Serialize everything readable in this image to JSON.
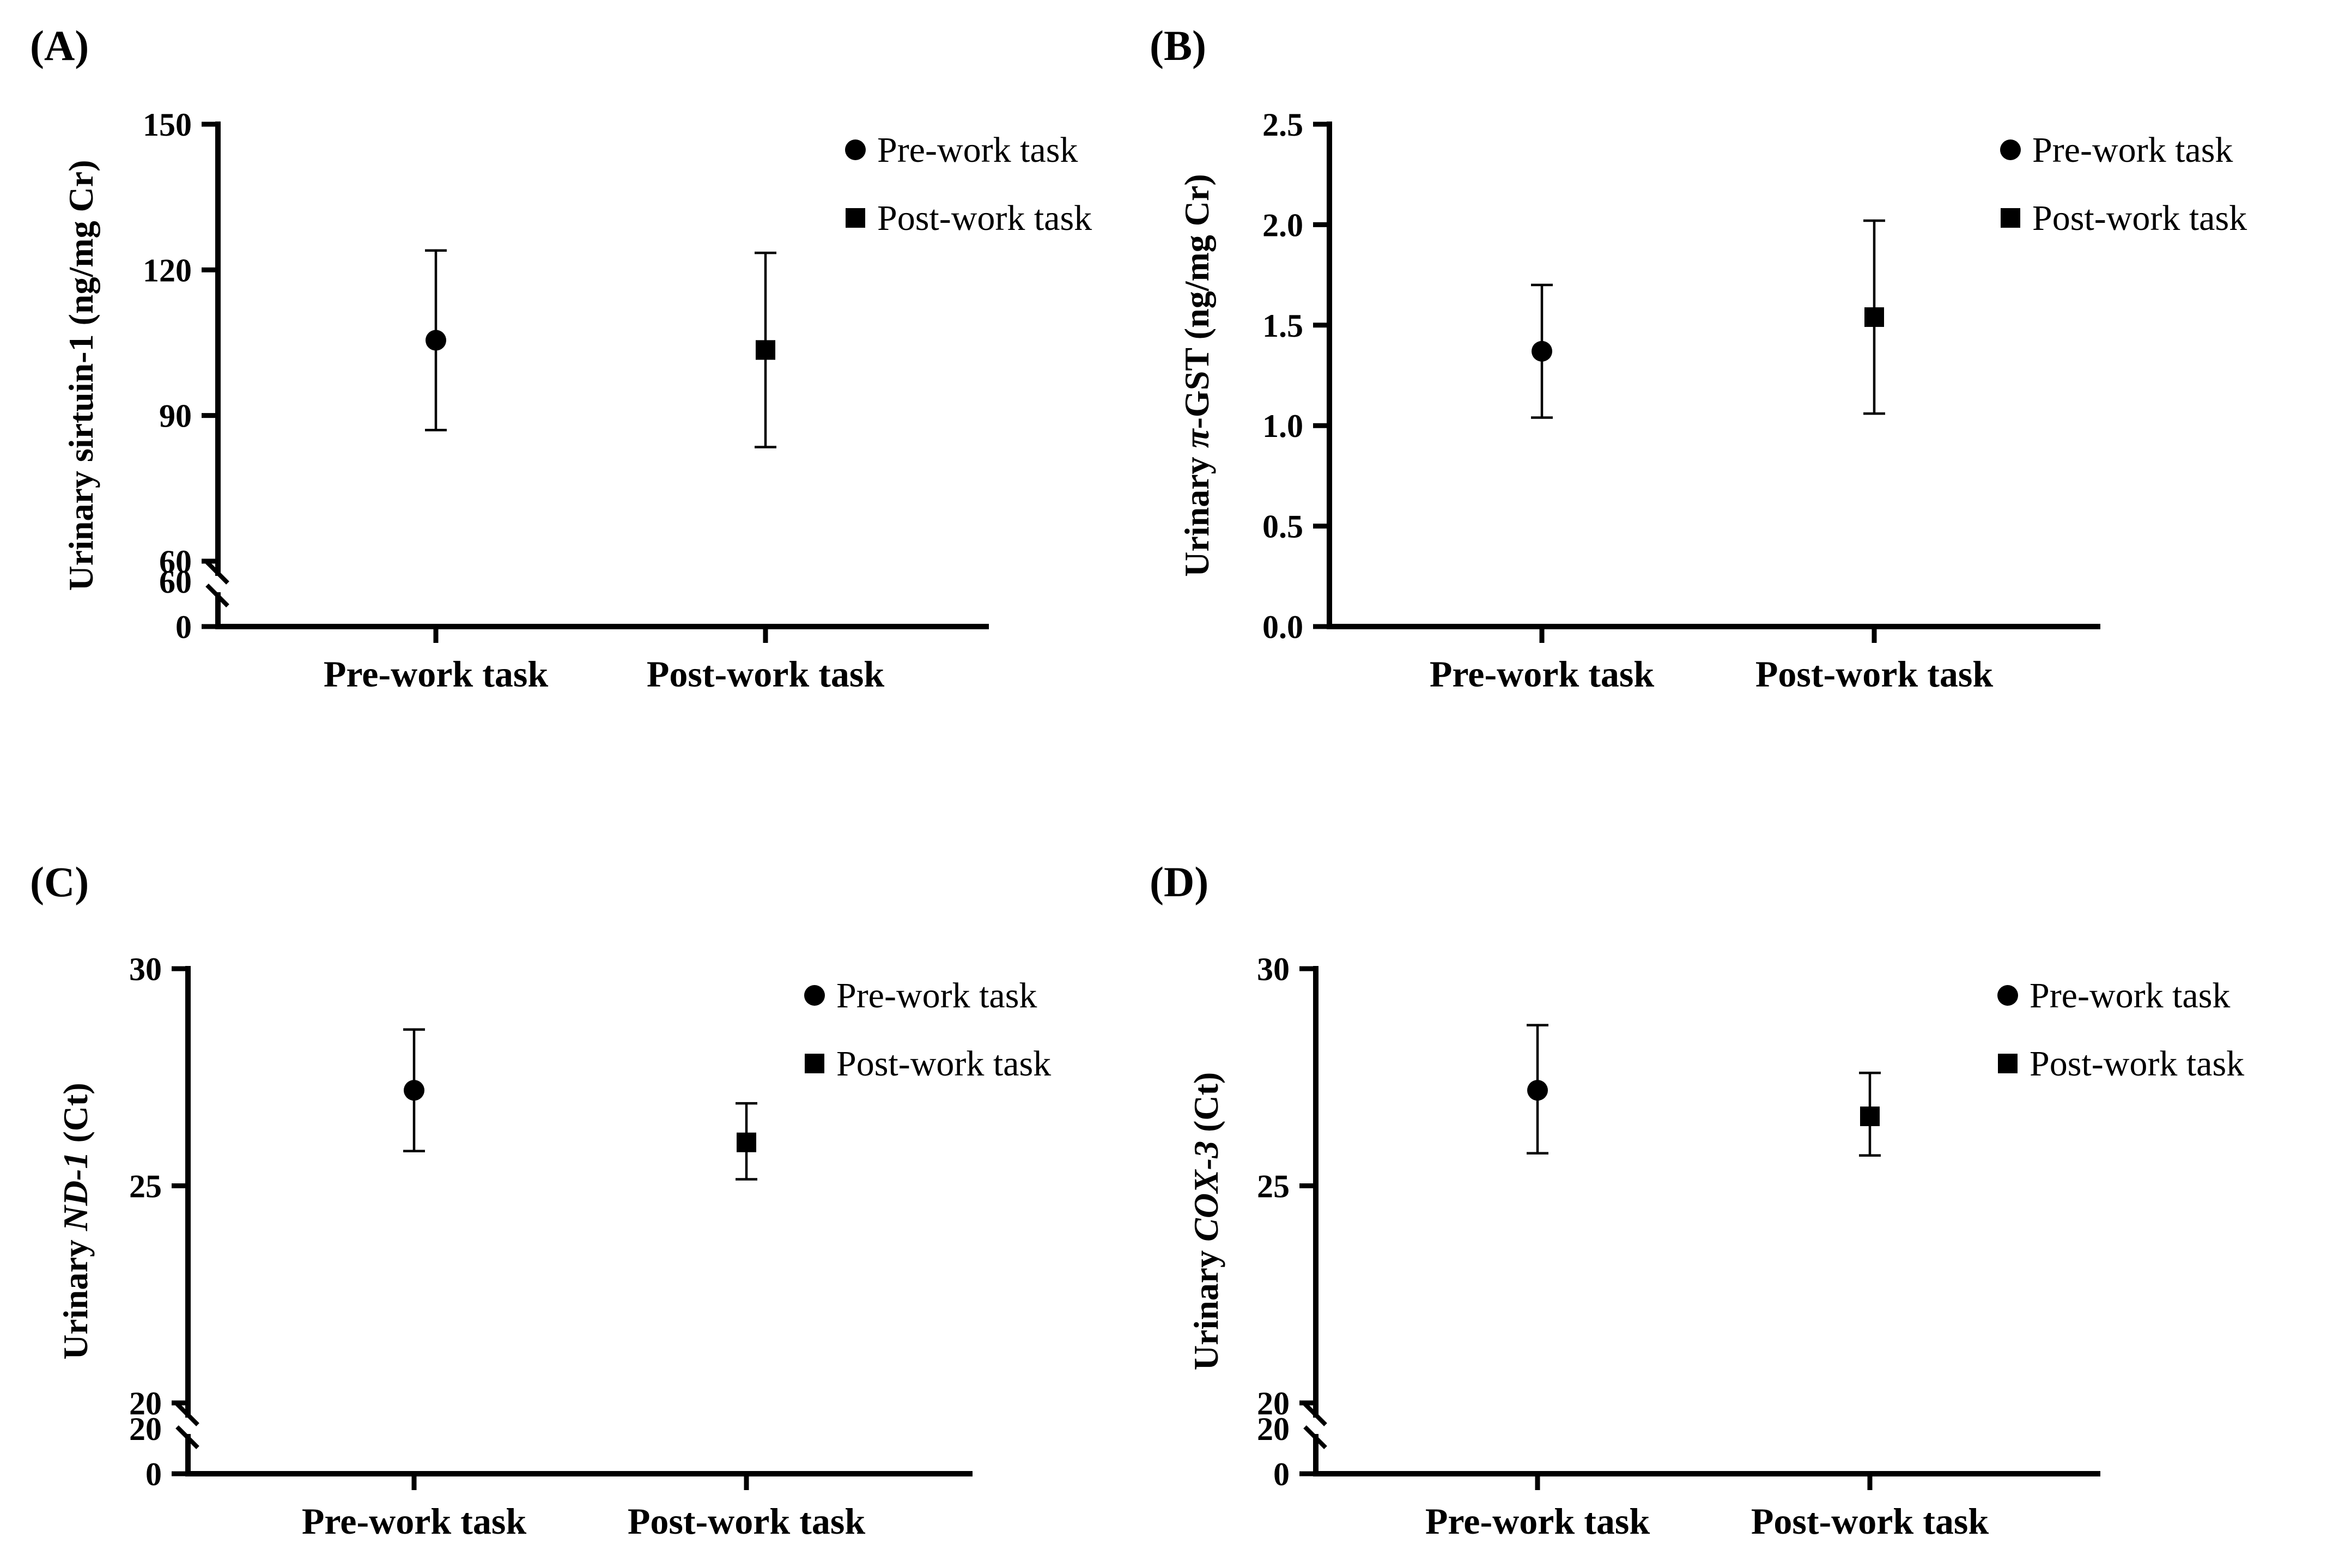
{
  "colors": {
    "marker": "#000000",
    "axis": "#000000",
    "background": "#ffffff"
  },
  "chart_data": [
    {
      "type": "scatter",
      "panel": "(A)",
      "ylabel_parts": [
        {
          "text": "Urinary sirtuin-1 (ng/mg Cr)",
          "italic": false
        }
      ],
      "categories": [
        "Pre-work task",
        "Post-work task"
      ],
      "series": [
        {
          "name": "Pre-work task",
          "marker": "circle",
          "value": 105.5,
          "err_low": 87.0,
          "err_high": 124.0
        },
        {
          "name": "Post-work task",
          "marker": "square",
          "value": 103.5,
          "err_low": 83.5,
          "err_high": 123.5
        }
      ],
      "axis_break": true,
      "lower_ticks": [
        "0",
        "60"
      ],
      "upper_range": [
        60,
        150
      ],
      "upper_ticks": [
        {
          "value": 60,
          "label": "60"
        },
        {
          "value": 90,
          "label": "90"
        },
        {
          "value": 120,
          "label": "120"
        },
        {
          "value": 150,
          "label": "150"
        }
      ],
      "legend": [
        "Pre-work task",
        "Post-work task"
      ],
      "legend_position": "top-right"
    },
    {
      "type": "scatter",
      "panel": "(B)",
      "ylabel_parts": [
        {
          "text": "Urinary ",
          "italic": false
        },
        {
          "text": "π",
          "italic": true
        },
        {
          "text": "-GST (ng/mg Cr)",
          "italic": false
        }
      ],
      "categories": [
        "Pre-work task",
        "Post-work task"
      ],
      "series": [
        {
          "name": "Pre-work task",
          "marker": "circle",
          "value": 1.37,
          "err_low": 1.04,
          "err_high": 1.7
        },
        {
          "name": "Post-work task",
          "marker": "square",
          "value": 1.54,
          "err_low": 1.06,
          "err_high": 2.02
        }
      ],
      "axis_break": false,
      "ylim": [
        0,
        2.5
      ],
      "ticks": [
        {
          "value": 0,
          "label": "0.0"
        },
        {
          "value": 0.5,
          "label": "0.5"
        },
        {
          "value": 1.0,
          "label": "1.0"
        },
        {
          "value": 1.5,
          "label": "1.5"
        },
        {
          "value": 2.0,
          "label": "2.0"
        },
        {
          "value": 2.5,
          "label": "2.5"
        }
      ],
      "legend": [
        "Pre-work task",
        "Post-work task"
      ],
      "legend_position": "top-right"
    },
    {
      "type": "scatter",
      "panel": "(C)",
      "ylabel_parts": [
        {
          "text": "Urinary ",
          "italic": false
        },
        {
          "text": "ND-1",
          "italic": true
        },
        {
          "text": " (Ct)",
          "italic": false
        }
      ],
      "categories": [
        "Pre-work task",
        "Post-work task"
      ],
      "series": [
        {
          "name": "Pre-work task",
          "marker": "circle",
          "value": 27.2,
          "err_low": 25.8,
          "err_high": 28.6
        },
        {
          "name": "Post-work task",
          "marker": "square",
          "value": 26.0,
          "err_low": 25.15,
          "err_high": 26.9
        }
      ],
      "axis_break": true,
      "lower_ticks": [
        "0",
        "20"
      ],
      "upper_range": [
        20,
        30
      ],
      "upper_ticks": [
        {
          "value": 20,
          "label": "20"
        },
        {
          "value": 25,
          "label": "25"
        },
        {
          "value": 30,
          "label": "30"
        }
      ],
      "legend": [
        "Pre-work task",
        "Post-work task"
      ],
      "legend_position": "top-right"
    },
    {
      "type": "scatter",
      "panel": "(D)",
      "ylabel_parts": [
        {
          "text": "Urinary ",
          "italic": false
        },
        {
          "text": "COX-3",
          "italic": true
        },
        {
          "text": " (Ct)",
          "italic": false
        }
      ],
      "categories": [
        "Pre-work task",
        "Post-work task"
      ],
      "series": [
        {
          "name": "Pre-work task",
          "marker": "circle",
          "value": 27.2,
          "err_low": 25.75,
          "err_high": 28.7
        },
        {
          "name": "Post-work task",
          "marker": "square",
          "value": 26.6,
          "err_low": 25.7,
          "err_high": 27.6
        }
      ],
      "axis_break": true,
      "lower_ticks": [
        "0",
        "20"
      ],
      "upper_range": [
        20,
        30
      ],
      "upper_ticks": [
        {
          "value": 20,
          "label": "20"
        },
        {
          "value": 25,
          "label": "25"
        },
        {
          "value": 30,
          "label": "30"
        }
      ],
      "legend": [
        "Pre-work task",
        "Post-work task"
      ],
      "legend_position": "top-right"
    }
  ]
}
